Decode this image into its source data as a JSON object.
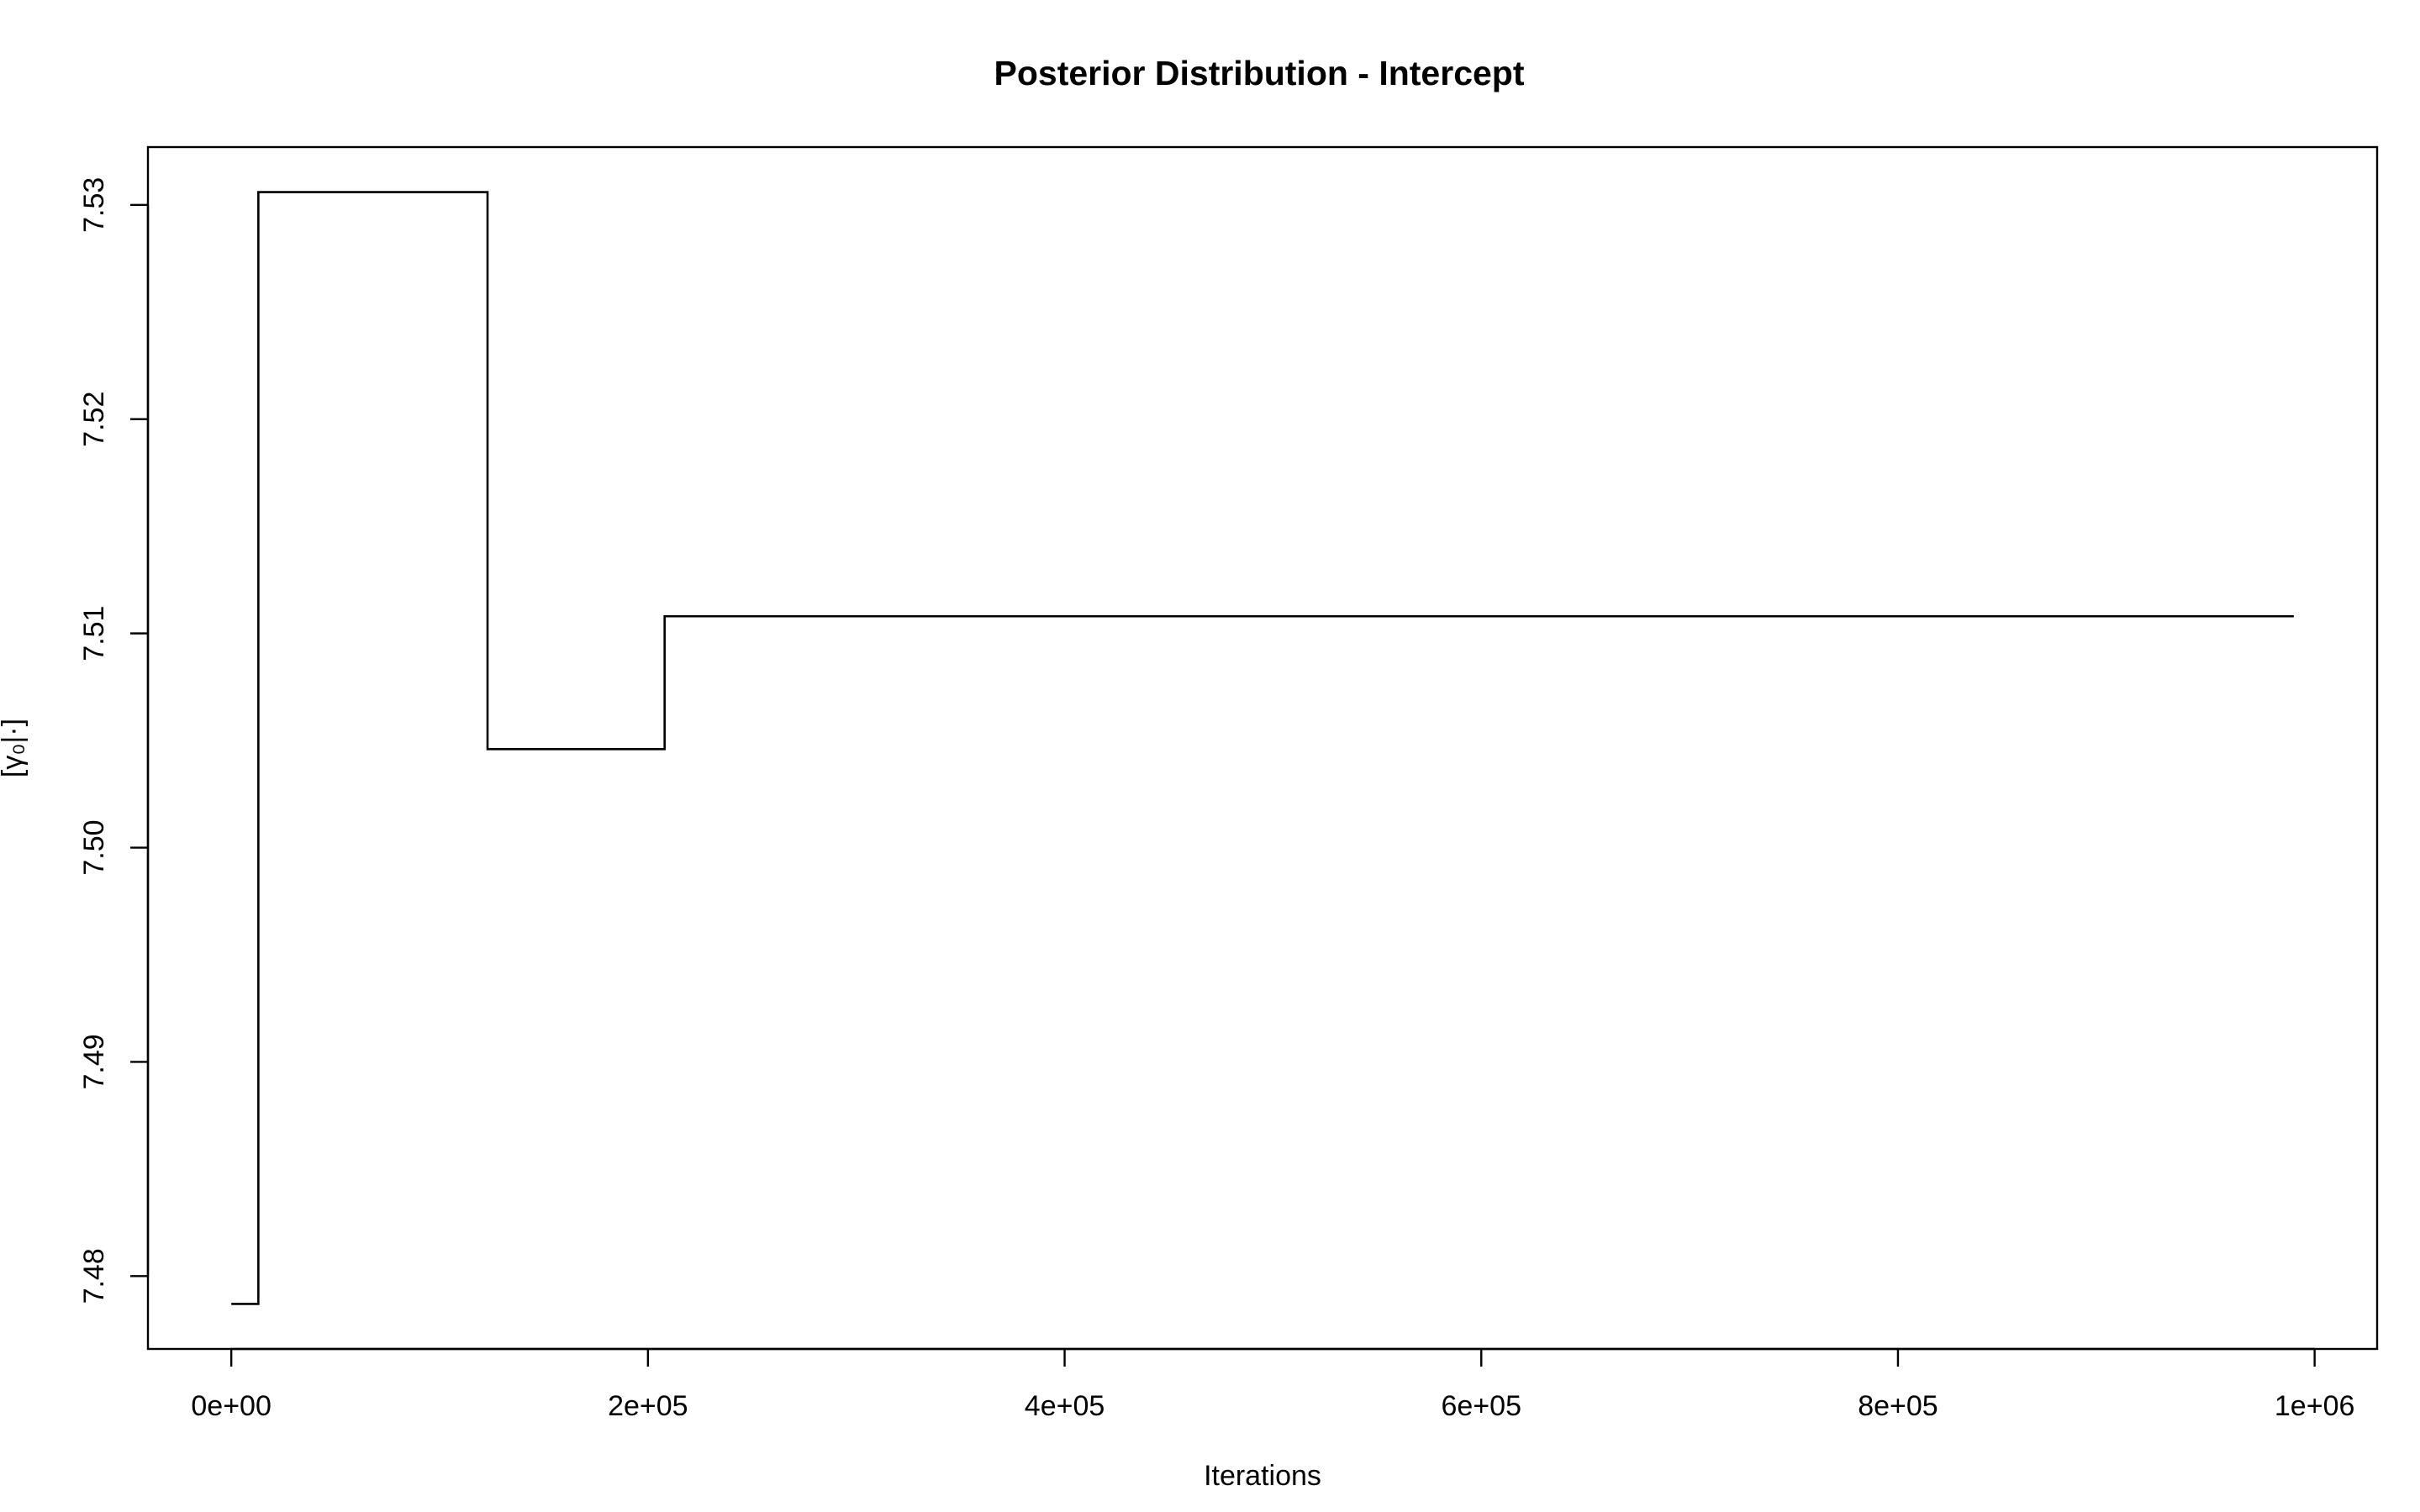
{
  "chart_data": {
    "type": "line",
    "step": true,
    "title": "Posterior Distribution - Intercept",
    "xlabel": "Iterations",
    "ylabel": "[γ₀|·]",
    "x_tick_values": [
      0,
      200000,
      400000,
      600000,
      800000,
      1000000
    ],
    "x_tick_labels": [
      "0e+00",
      "2e+05",
      "4e+05",
      "6e+05",
      "8e+05",
      "1e+06"
    ],
    "y_tick_values": [
      7.48,
      7.49,
      7.5,
      7.51,
      7.52,
      7.53
    ],
    "y_tick_labels": [
      "7.48",
      "7.49",
      "7.50",
      "7.51",
      "7.52",
      "7.53"
    ],
    "xlim": [
      -40000,
      1030000
    ],
    "ylim": [
      7.4766,
      7.5327
    ],
    "grid": false,
    "series": [
      {
        "x": [
          0,
          13000,
          13000,
          123000,
          123000,
          208000,
          208000,
          990000
        ],
        "y": [
          7.4787,
          7.4787,
          7.5306,
          7.5306,
          7.5046,
          7.5046,
          7.5108,
          7.5108
        ]
      }
    ]
  }
}
